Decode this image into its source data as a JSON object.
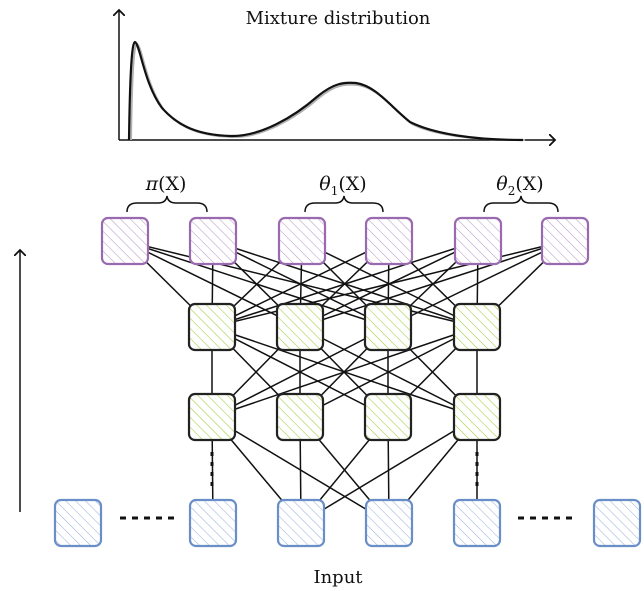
{
  "title": "Mixture distribution",
  "input_label": "Input",
  "output_labels": [
    {
      "name": "pi",
      "base": "π",
      "sub": "",
      "arg": "(X)"
    },
    {
      "name": "theta1",
      "base": "θ",
      "sub": "1",
      "arg": "(X)"
    },
    {
      "name": "theta2",
      "base": "θ",
      "sub": "2",
      "arg": "(X)"
    }
  ],
  "colors": {
    "output_stroke": "#9a6ab0",
    "output_hatch": "#b99ac8",
    "hidden_stroke": "#222222",
    "hidden_hatch": "#9ccc3a",
    "input_stroke": "#6a8fc8",
    "input_hatch": "#9ab4dc",
    "curve": "#111111",
    "curve_shadow": "#b0b0b0"
  },
  "layers": {
    "output_count": 6,
    "hidden_count": 4,
    "hidden_layers": 2,
    "input_count": 6
  }
}
